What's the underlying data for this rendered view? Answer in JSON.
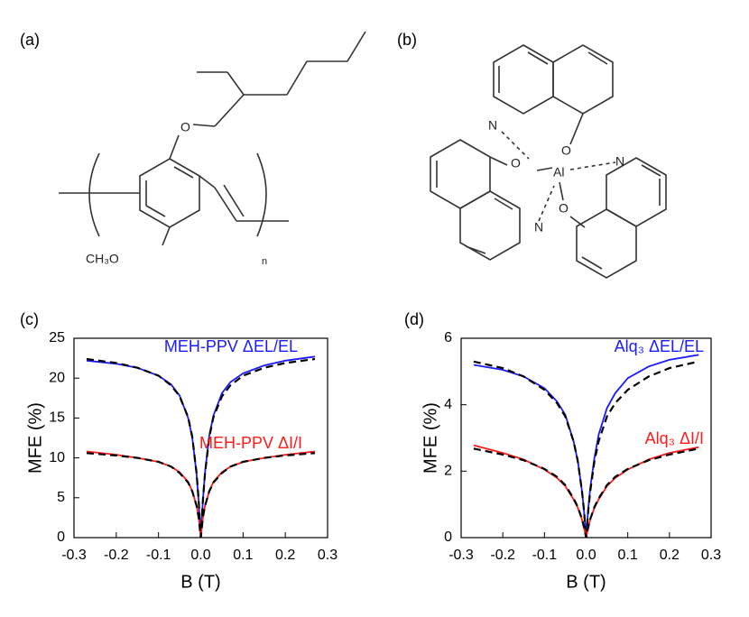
{
  "structures": [
    {
      "label": "(a)",
      "atoms": [
        "O",
        "CH₃O",
        "n"
      ]
    },
    {
      "label": "(b)",
      "atoms": [
        "N",
        "O",
        "O",
        "Al",
        "N",
        "N",
        "O"
      ]
    }
  ],
  "chart_data": [
    {
      "type": "line",
      "panel_label": "(c)",
      "x_label": "B (T)",
      "y_label": "MFE (%)",
      "x": [
        -0.27,
        -0.2,
        -0.15,
        -0.1,
        -0.07,
        -0.05,
        -0.03,
        -0.02,
        -0.01,
        -0.005,
        0,
        0.005,
        0.01,
        0.02,
        0.03,
        0.05,
        0.07,
        0.1,
        0.15,
        0.2,
        0.27
      ],
      "series": [
        {
          "name": "MEH-PPV ΔEL/EL",
          "color": "#1a1aff",
          "values": [
            22.2,
            21.8,
            21.3,
            20.3,
            19.2,
            17.8,
            15,
            12.5,
            8,
            4.5,
            0,
            4.6,
            8.2,
            12.8,
            15.3,
            18.1,
            19.5,
            20.6,
            21.6,
            22.2,
            22.7
          ]
        },
        {
          "color": "#000000",
          "dashed": true,
          "values": [
            22.4,
            21.9,
            21.3,
            20.3,
            19.1,
            17.7,
            15.1,
            12.6,
            8.1,
            4.6,
            0,
            4.6,
            8.1,
            12.6,
            15.1,
            17.7,
            19.1,
            20.3,
            21.3,
            21.9,
            22.4
          ]
        },
        {
          "name": "MEH-PPV ΔI/I",
          "color": "#ff1a1a",
          "values": [
            10.8,
            10.4,
            10,
            9.5,
            8.9,
            8.2,
            7,
            5.8,
            4,
            2.5,
            0,
            2.5,
            4,
            5.8,
            7,
            8.2,
            8.9,
            9.5,
            10,
            10.4,
            10.8
          ]
        },
        {
          "color": "#000000",
          "dashed": true,
          "values": [
            10.6,
            10.3,
            10,
            9.5,
            8.9,
            8.1,
            6.9,
            5.8,
            4,
            2.5,
            0,
            2.5,
            4,
            5.8,
            6.9,
            8.1,
            8.9,
            9.5,
            10,
            10.3,
            10.6
          ]
        }
      ],
      "xlim": [
        -0.3,
        0.3
      ],
      "ylim": [
        0,
        25
      ],
      "xticks": [
        -0.3,
        -0.2,
        -0.1,
        {
          "value": 0,
          "label": "0.0"
        },
        0.1,
        0.2,
        0.3
      ],
      "yticks": [
        0,
        5,
        10,
        15,
        20,
        25
      ]
    },
    {
      "type": "line",
      "panel_label": "(d)",
      "x_label": "B (T)",
      "y_label": "MFE (%)",
      "x": [
        -0.27,
        -0.2,
        -0.15,
        -0.1,
        -0.07,
        -0.05,
        -0.03,
        -0.02,
        -0.01,
        -0.005,
        0,
        0.005,
        0.01,
        0.02,
        0.03,
        0.05,
        0.07,
        0.1,
        0.15,
        0.2,
        0.27
      ],
      "series": [
        {
          "name": "Alq₃ ΔEL/EL",
          "color": "#1a1aff",
          "values": [
            5.2,
            5.05,
            4.85,
            4.5,
            4.1,
            3.7,
            2.9,
            2.3,
            1.4,
            0.8,
            0,
            0.85,
            1.5,
            2.4,
            3.1,
            3.9,
            4.35,
            4.8,
            5.15,
            5.35,
            5.5
          ]
        },
        {
          "color": "#000000",
          "dashed": true,
          "values": [
            5.3,
            5.1,
            4.85,
            4.45,
            4.05,
            3.65,
            2.9,
            2.3,
            1.4,
            0.8,
            0,
            0.8,
            1.4,
            2.3,
            2.9,
            3.65,
            4.05,
            4.45,
            4.85,
            5.1,
            5.3
          ]
        },
        {
          "name": "Alq₃ ΔI/I",
          "color": "#ff1a1a",
          "values": [
            2.78,
            2.55,
            2.35,
            2.05,
            1.8,
            1.55,
            1.15,
            0.9,
            0.55,
            0.3,
            0,
            0.3,
            0.55,
            0.9,
            1.15,
            1.55,
            1.8,
            2.05,
            2.35,
            2.55,
            2.72
          ]
        },
        {
          "color": "#000000",
          "dashed": true,
          "values": [
            2.68,
            2.5,
            2.33,
            2.07,
            1.83,
            1.58,
            1.18,
            0.92,
            0.56,
            0.31,
            0,
            0.31,
            0.56,
            0.92,
            1.18,
            1.58,
            1.83,
            2.07,
            2.33,
            2.5,
            2.68
          ]
        }
      ],
      "xlim": [
        -0.3,
        0.3
      ],
      "ylim": [
        0,
        6
      ],
      "xticks": [
        -0.3,
        -0.2,
        -0.1,
        {
          "value": 0,
          "label": "0.0"
        },
        0.1,
        0.2,
        0.3
      ],
      "yticks": [
        0,
        2,
        4,
        6
      ]
    }
  ]
}
